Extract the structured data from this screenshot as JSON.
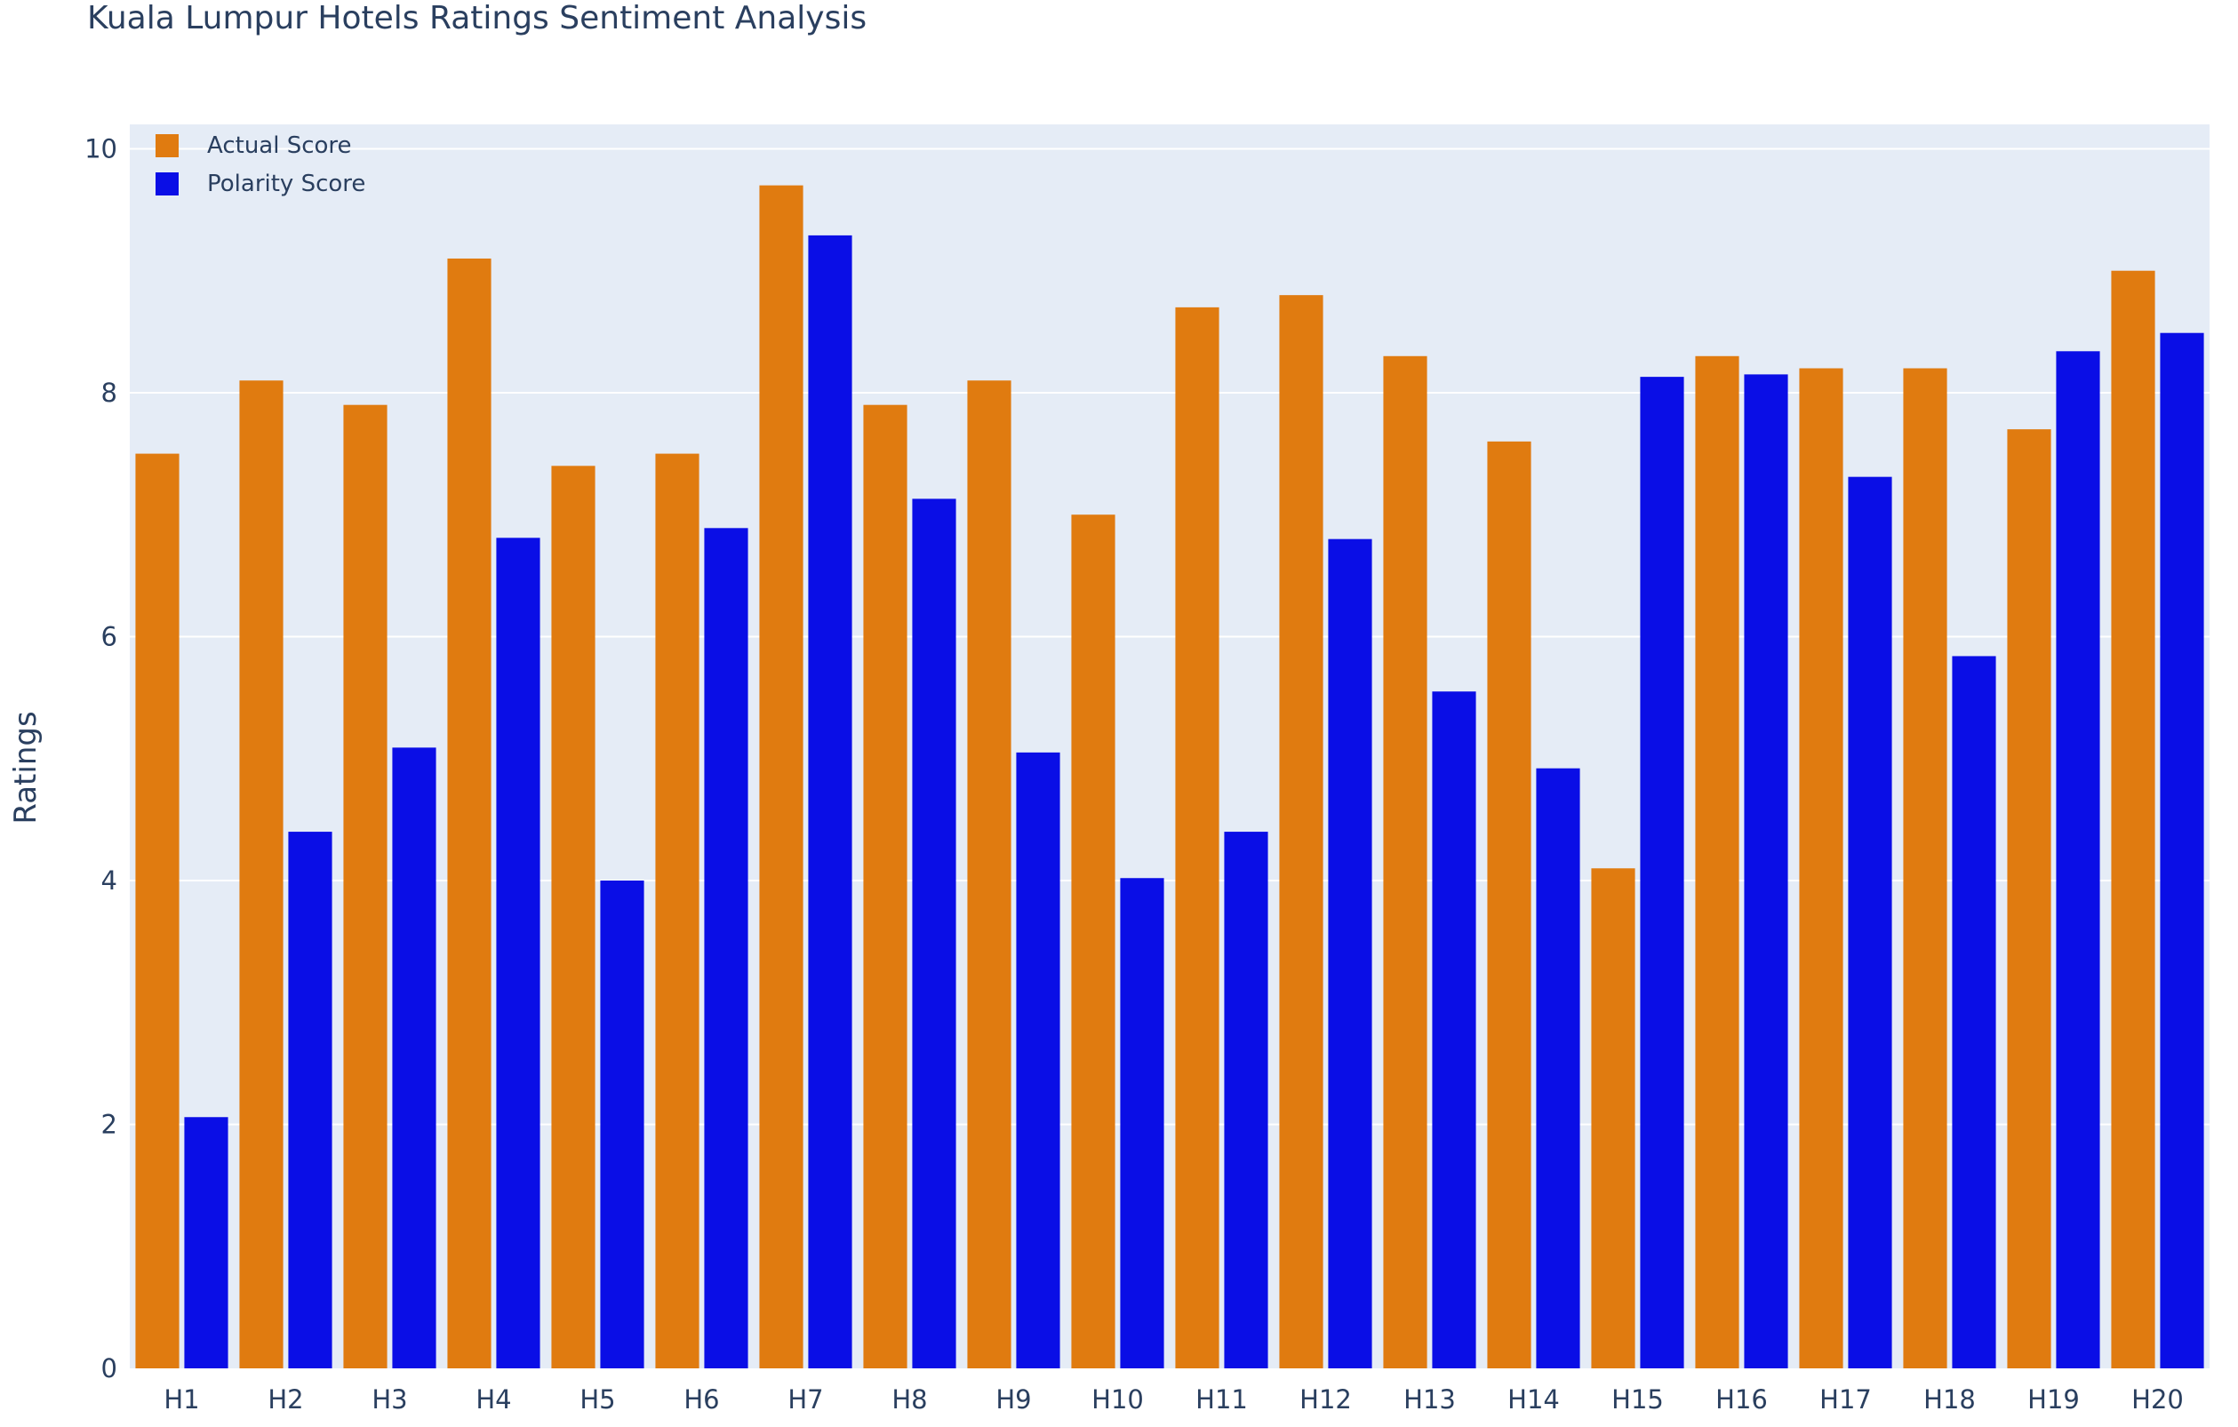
{
  "chart_data": {
    "type": "bar",
    "title": "Kuala Lumpur Hotels Ratings Sentiment Analysis",
    "xlabel": "",
    "ylabel": "Ratings",
    "categories": [
      "H1",
      "H2",
      "H3",
      "H4",
      "H5",
      "H6",
      "H7",
      "H8",
      "H9",
      "H10",
      "H11",
      "H12",
      "H13",
      "H14",
      "H15",
      "H16",
      "H17",
      "H18",
      "H19",
      "H20"
    ],
    "series": [
      {
        "name": "Actual Score",
        "color": "#e07b10",
        "values": [
          7.5,
          8.1,
          7.9,
          9.1,
          7.4,
          7.5,
          9.7,
          7.9,
          8.1,
          7.0,
          8.7,
          8.8,
          8.3,
          7.6,
          4.1,
          8.3,
          8.2,
          8.2,
          7.7,
          9.0
        ]
      },
      {
        "name": "Polarity Score",
        "color": "#0a0ee6",
        "values": [
          2.06,
          4.4,
          5.09,
          6.81,
          4.0,
          6.89,
          9.29,
          7.13,
          5.05,
          4.02,
          4.4,
          6.8,
          5.55,
          4.92,
          8.13,
          8.15,
          7.31,
          5.84,
          8.34,
          8.49
        ]
      }
    ],
    "ylim": [
      0,
      10.2
    ],
    "yticks": [
      0,
      2,
      4,
      6,
      8,
      10
    ],
    "grid": true,
    "legend_position": "top-left",
    "plot_background": "#e5ecf6"
  }
}
